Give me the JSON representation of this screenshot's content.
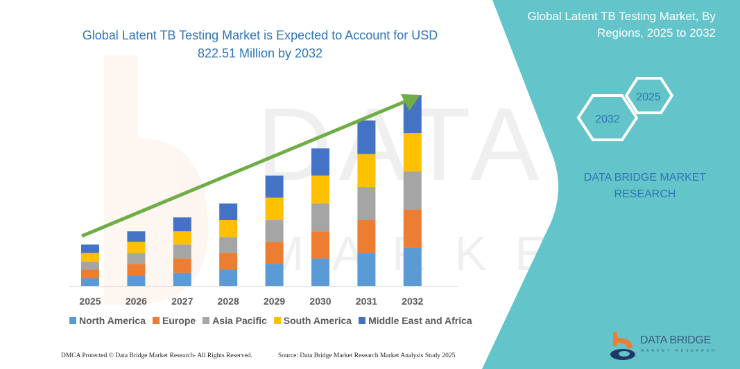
{
  "header": {
    "title": "Global Latent TB Testing Market is Expected to Account for USD 822.51 Million by 2032"
  },
  "side_panel": {
    "title": "Global Latent TB Testing Market, By Regions, 2025 to 2032",
    "hex_start_year": "2025",
    "hex_end_year": "2032",
    "brand": "DATA BRIDGE MARKET RESEARCH",
    "logo_text": "DATA BRIDGE",
    "logo_subtext": "MARKET RESEARCH",
    "panel_color": "#63c4c9"
  },
  "footer": {
    "left": "DMCA Protected © Data Bridge Market Research- All Rights Reserved.",
    "right": "Source: Data Bridge Market Research Market Analysis Study 2025"
  },
  "chart_data": {
    "type": "bar",
    "stacked": true,
    "title": "Global Latent TB Testing Market is Expected to Account for USD 822.51 Million by 2032",
    "categories": [
      "2025",
      "2026",
      "2027",
      "2028",
      "2029",
      "2030",
      "2031",
      "2032"
    ],
    "series": [
      {
        "name": "North America",
        "color": "#5b9bd5",
        "values": [
          33,
          47,
          57,
          70,
          95,
          118,
          142,
          164
        ]
      },
      {
        "name": "Europe",
        "color": "#ed7d31",
        "values": [
          37,
          48,
          61,
          72,
          95,
          117,
          141,
          165
        ]
      },
      {
        "name": "Asia Pacific",
        "color": "#a5a5a5",
        "values": [
          35,
          47,
          60,
          68,
          93,
          120,
          143,
          164
        ]
      },
      {
        "name": "South America",
        "color": "#ffc000",
        "values": [
          37,
          48,
          57,
          73,
          97,
          120,
          142,
          165
        ]
      },
      {
        "name": "Middle East and Africa",
        "color": "#4472c4",
        "values": [
          36,
          45,
          60,
          72,
          95,
          117,
          144,
          164
        ]
      }
    ],
    "ylim": [
      0,
      822.51
    ],
    "y_axis_visible": false,
    "grid": false,
    "legend": "bottom",
    "trend_arrow_color": "#70ad47"
  }
}
